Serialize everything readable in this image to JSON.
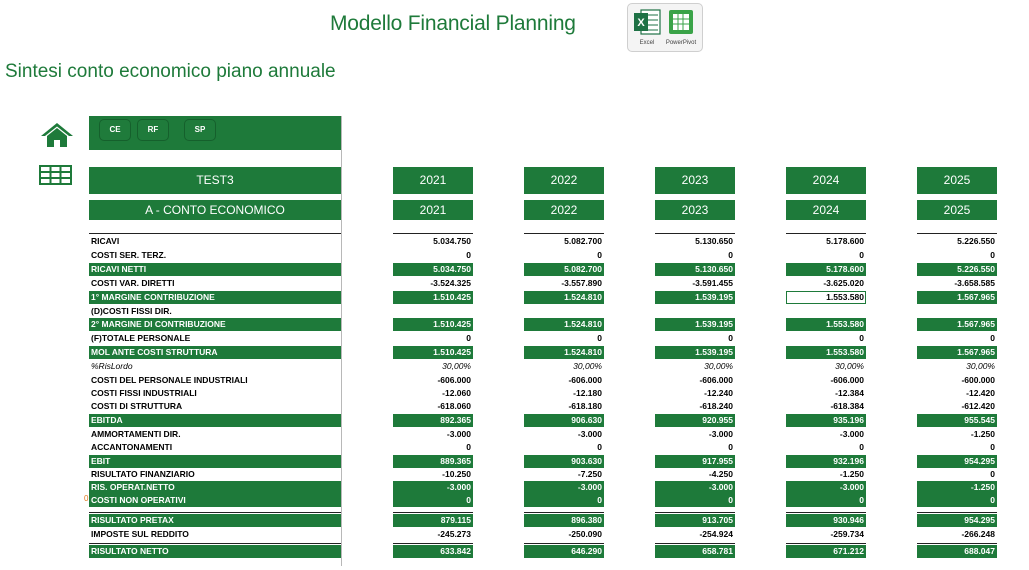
{
  "header": {
    "title": "Modello Financial Planning",
    "subtitle": "Sintesi conto economico piano annuale",
    "app_icons": [
      {
        "name": "excel-icon",
        "label": "Excel",
        "color": "#1e7145"
      },
      {
        "name": "powerpivot-icon",
        "label": "PowerPivot",
        "color": "#3aa348"
      }
    ]
  },
  "nav": {
    "buttons": [
      "CE",
      "RF",
      "SP"
    ],
    "home_icon": "home-icon",
    "table_icon": "table-icon"
  },
  "colors": {
    "accent": "#1e7a3a",
    "marker": "#e0761c"
  },
  "table": {
    "scenario": "TEST3",
    "section": "A - CONTO ECONOMICO",
    "years": [
      "2021",
      "2022",
      "2023",
      "2024",
      "2025"
    ],
    "row_marker": "0",
    "rows": [
      {
        "label": "RICAVI",
        "style": "n",
        "values": [
          "5.034.750",
          "5.082.700",
          "5.130.650",
          "5.178.600",
          "5.226.550"
        ]
      },
      {
        "label": "COSTI SER. TERZ.",
        "style": "n",
        "values": [
          "0",
          "0",
          "0",
          "0",
          "0"
        ]
      },
      {
        "label": "RICAVI NETTI",
        "style": "g",
        "values": [
          "5.034.750",
          "5.082.700",
          "5.130.650",
          "5.178.600",
          "5.226.550"
        ]
      },
      {
        "label": "COSTI VAR. DIRETTI",
        "style": "n",
        "values": [
          "-3.524.325",
          "-3.557.890",
          "-3.591.455",
          "-3.625.020",
          "-3.658.585"
        ]
      },
      {
        "label": "1° MARGINE CONTRIBUZIONE",
        "style": "g",
        "values": [
          "1.510.425",
          "1.524.810",
          "1.539.195",
          "1.553.580",
          "1.567.965"
        ]
      },
      {
        "label": "(D)COSTI FISSI DIR.",
        "style": "n",
        "values": [
          "",
          "",
          "",
          "",
          ""
        ]
      },
      {
        "label": "2° MARGINE DI CONTRIBUZIONE",
        "style": "g",
        "values": [
          "1.510.425",
          "1.524.810",
          "1.539.195",
          "1.553.580",
          "1.567.965"
        ]
      },
      {
        "label": "(F)TOTALE PERSONALE",
        "style": "n",
        "values": [
          "0",
          "0",
          "0",
          "0",
          "0"
        ]
      },
      {
        "label": "MOL ANTE COSTI STRUTTURA",
        "style": "g",
        "values": [
          "1.510.425",
          "1.524.810",
          "1.539.195",
          "1.553.580",
          "1.567.965"
        ]
      },
      {
        "label": "%RisLordo",
        "style": "i",
        "values": [
          "30,00%",
          "30,00%",
          "30,00%",
          "30,00%",
          "30,00%"
        ]
      },
      {
        "label": "COSTI DEL PERSONALE INDUSTRIALI",
        "style": "n",
        "values": [
          "-606.000",
          "-606.000",
          "-606.000",
          "-606.000",
          "-600.000"
        ]
      },
      {
        "label": "COSTI FISSI INDUSTRIALI",
        "style": "n",
        "values": [
          "-12.060",
          "-12.180",
          "-12.240",
          "-12.384",
          "-12.420"
        ]
      },
      {
        "label": "COSTI DI STRUTTURA",
        "style": "n",
        "values": [
          "-618.060",
          "-618.180",
          "-618.240",
          "-618.384",
          "-612.420"
        ]
      },
      {
        "label": "EBITDA",
        "style": "g",
        "values": [
          "892.365",
          "906.630",
          "920.955",
          "935.196",
          "955.545"
        ]
      },
      {
        "label": "AMMORTAMENTI DIR.",
        "style": "n",
        "values": [
          "-3.000",
          "-3.000",
          "-3.000",
          "-3.000",
          "-1.250"
        ]
      },
      {
        "label": "ACCANTONAMENTI",
        "style": "n",
        "values": [
          "0",
          "0",
          "0",
          "0",
          "0"
        ]
      },
      {
        "label": "EBIT",
        "style": "g",
        "values": [
          "889.365",
          "903.630",
          "917.955",
          "932.196",
          "954.295"
        ]
      },
      {
        "label": "RISULTATO FINANZIARIO",
        "style": "n",
        "values": [
          "-10.250",
          "-7.250",
          "-4.250",
          "-1.250",
          "0"
        ]
      },
      {
        "label": "RIS. OPERAT.NETTO",
        "style": "g",
        "values": [
          "-3.000",
          "-3.000",
          "-3.000",
          "-3.000",
          "-1.250"
        ]
      },
      {
        "label": "COSTI NON OPERATIVI",
        "style": "g",
        "values": [
          "0",
          "0",
          "0",
          "0",
          "0"
        ]
      },
      {
        "label": "RISULTATO PRETAX",
        "style": "g",
        "values": [
          "879.115",
          "896.380",
          "913.705",
          "930.946",
          "954.295"
        ]
      },
      {
        "label": "IMPOSTE SUL REDDITO",
        "style": "n",
        "values": [
          "-245.273",
          "-250.090",
          "-254.924",
          "-259.734",
          "-266.248"
        ]
      },
      {
        "label": "RISULTATO NETTO",
        "style": "g",
        "values": [
          "633.842",
          "646.290",
          "658.781",
          "671.212",
          "688.047"
        ]
      }
    ]
  }
}
